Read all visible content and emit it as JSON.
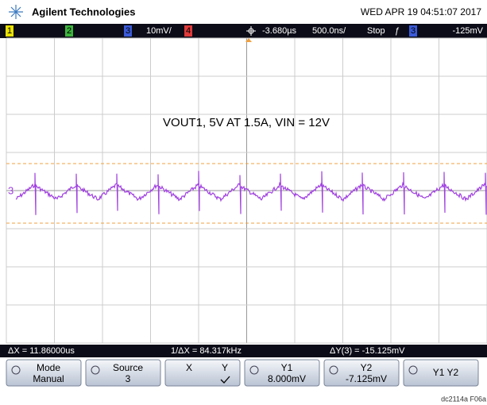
{
  "header": {
    "brand": "Agilent Technologies",
    "datetime": "WED APR 19 04:51:07 2017"
  },
  "channel_bar": {
    "ch1": "1",
    "ch2": "2",
    "ch3": "3",
    "ch3_scale": "10mV/",
    "ch4": "4",
    "delay": "-3.680µs",
    "timebase": "500.0ns/",
    "run_state": "Stop",
    "trigger_channel": "3",
    "trigger_level": "-125mV"
  },
  "screen": {
    "annotation": "VOUT1, 5V AT 1.5A, VIN = 12V",
    "ch3_marker": "3"
  },
  "measure_bar": {
    "dx": "ΔX = 11.86000us",
    "inv_dx": "1/ΔX = 84.317kHz",
    "dy": "ΔY(3) = -15.125mV"
  },
  "softkeys": [
    {
      "lines": [
        "Mode",
        "Manual"
      ]
    },
    {
      "lines": [
        "Source",
        "3"
      ]
    },
    {
      "lines": [
        "X",
        "Y"
      ]
    },
    {
      "lines": [
        "Y1",
        "8.000mV"
      ]
    },
    {
      "lines": [
        "Y2",
        "-7.125mV"
      ]
    },
    {
      "lines": [
        "Y1 Y2"
      ]
    }
  ],
  "figure_code": "dc2114a F06a"
}
